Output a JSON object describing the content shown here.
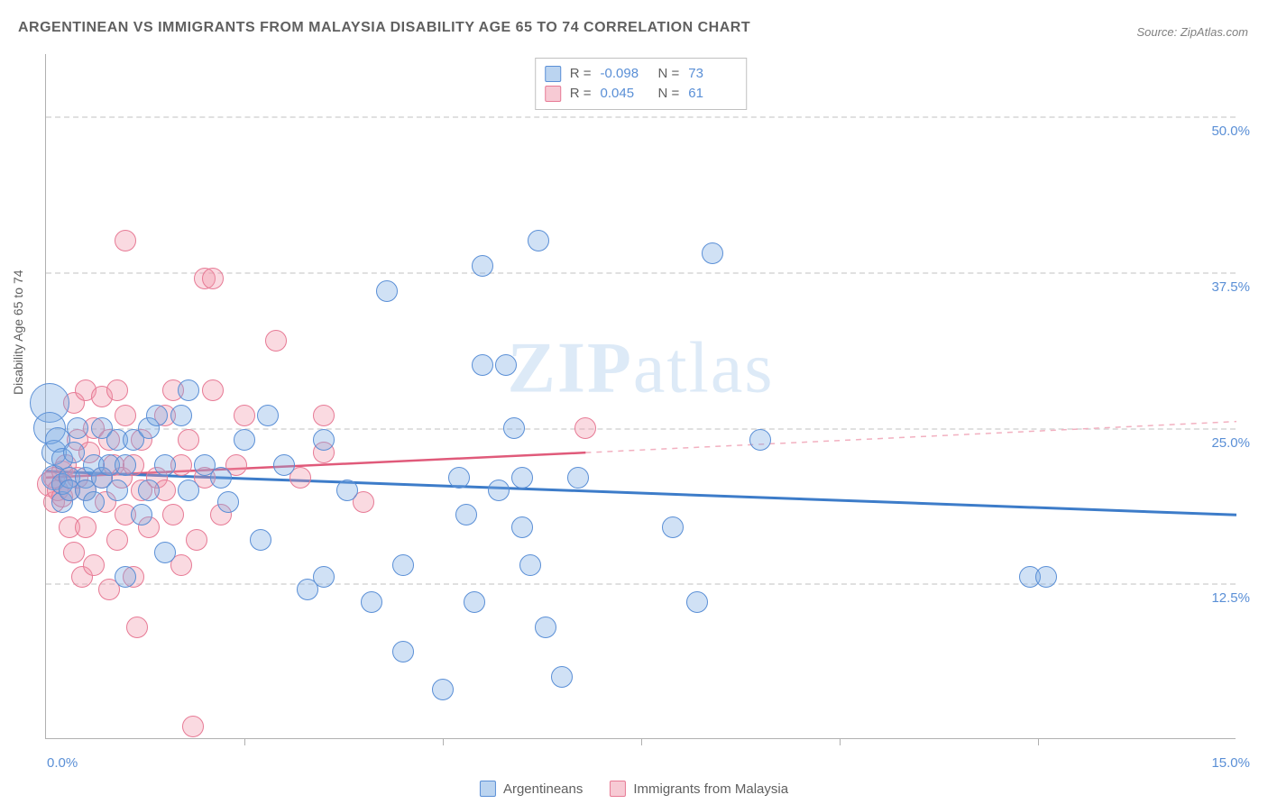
{
  "title": "ARGENTINEAN VS IMMIGRANTS FROM MALAYSIA DISABILITY AGE 65 TO 74 CORRELATION CHART",
  "source": "Source: ZipAtlas.com",
  "watermark_zip": "ZIP",
  "watermark_atlas": "atlas",
  "chart": {
    "type": "scatter",
    "ylabel": "Disability Age 65 to 74",
    "xlim": [
      0,
      15
    ],
    "ylim": [
      0,
      55
    ],
    "x_ticks": [
      0,
      2.5,
      5,
      7.5,
      10,
      12.5,
      15
    ],
    "x_tick_labels": [
      "0.0%",
      "",
      "",
      "",
      "",
      "",
      "15.0%"
    ],
    "y_ticks": [
      12.5,
      25,
      37.5,
      50
    ],
    "y_tick_labels": [
      "12.5%",
      "25.0%",
      "37.5%",
      "50.0%"
    ],
    "background_color": "#ffffff",
    "grid_color": "#e0e0e0",
    "series": [
      {
        "name": "Argentineans",
        "color_fill": "rgba(120,170,225,0.35)",
        "color_stroke": "#5a8fd6",
        "R": "-0.098",
        "N": "73",
        "marker_radius": 11,
        "trend": {
          "x1": 0,
          "y1": 21.5,
          "x2": 15,
          "y2": 18.0,
          "color": "#3d7cc9",
          "width": 3,
          "dash": "none"
        },
        "points": [
          [
            0.05,
            27,
            22
          ],
          [
            0.05,
            25,
            18
          ],
          [
            0.1,
            21,
            14
          ],
          [
            0.1,
            23,
            14
          ],
          [
            0.15,
            24,
            14
          ],
          [
            0.2,
            22.5,
            12
          ],
          [
            0.2,
            19,
            12
          ],
          [
            0.2,
            20.5,
            12
          ],
          [
            0.3,
            21,
            12
          ],
          [
            0.3,
            20,
            12
          ],
          [
            0.35,
            23,
            12
          ],
          [
            0.4,
            25,
            12
          ],
          [
            0.5,
            21,
            12
          ],
          [
            0.5,
            20,
            12
          ],
          [
            0.6,
            22,
            12
          ],
          [
            0.6,
            19,
            12
          ],
          [
            0.7,
            25,
            12
          ],
          [
            0.7,
            21,
            12
          ],
          [
            0.8,
            22,
            12
          ],
          [
            0.9,
            20,
            12
          ],
          [
            0.9,
            24,
            12
          ],
          [
            1.0,
            13,
            12
          ],
          [
            1.0,
            22,
            12
          ],
          [
            1.1,
            24,
            12
          ],
          [
            1.2,
            18,
            12
          ],
          [
            1.3,
            25,
            12
          ],
          [
            1.3,
            20,
            12
          ],
          [
            1.4,
            26,
            12
          ],
          [
            1.5,
            15,
            12
          ],
          [
            1.5,
            22,
            12
          ],
          [
            1.7,
            26,
            12
          ],
          [
            1.8,
            28,
            12
          ],
          [
            1.8,
            20,
            12
          ],
          [
            2.0,
            22,
            12
          ],
          [
            2.2,
            21,
            12
          ],
          [
            2.3,
            19,
            12
          ],
          [
            2.5,
            24,
            12
          ],
          [
            2.7,
            16,
            12
          ],
          [
            2.8,
            26,
            12
          ],
          [
            3.0,
            22,
            12
          ],
          [
            3.3,
            12,
            12
          ],
          [
            3.5,
            24,
            12
          ],
          [
            3.5,
            13,
            12
          ],
          [
            3.8,
            20,
            12
          ],
          [
            4.1,
            11,
            12
          ],
          [
            4.3,
            36,
            12
          ],
          [
            4.5,
            14,
            12
          ],
          [
            4.5,
            7,
            12
          ],
          [
            5.0,
            4,
            12
          ],
          [
            5.2,
            21,
            12
          ],
          [
            5.3,
            18,
            12
          ],
          [
            5.4,
            11,
            12
          ],
          [
            5.5,
            30,
            12
          ],
          [
            5.5,
            38,
            12
          ],
          [
            5.7,
            20,
            12
          ],
          [
            5.8,
            30,
            12
          ],
          [
            5.9,
            25,
            12
          ],
          [
            6.0,
            17,
            12
          ],
          [
            6.0,
            21,
            12
          ],
          [
            6.1,
            14,
            12
          ],
          [
            6.2,
            40,
            12
          ],
          [
            6.3,
            9,
            12
          ],
          [
            6.5,
            5,
            12
          ],
          [
            6.7,
            21,
            12
          ],
          [
            7.9,
            17,
            12
          ],
          [
            8.2,
            11,
            12
          ],
          [
            8.4,
            39,
            12
          ],
          [
            9.0,
            24,
            12
          ],
          [
            12.4,
            13,
            12
          ],
          [
            12.6,
            13,
            12
          ]
        ]
      },
      {
        "name": "Immigrants from Malaysia",
        "color_fill": "rgba(240,150,170,0.35)",
        "color_stroke": "#e77a95",
        "R": "0.045",
        "N": "61",
        "marker_radius": 11,
        "trend": {
          "x1": 0,
          "y1": 21.0,
          "x2": 6.8,
          "y2": 23.0,
          "color": "#e05a7a",
          "width": 2.5,
          "dash": "none"
        },
        "trend_ext": {
          "x1": 6.8,
          "y1": 23.0,
          "x2": 15,
          "y2": 25.5,
          "color": "#f2b0c0",
          "width": 1.5,
          "dash": "6,6"
        },
        "points": [
          [
            0.05,
            20.5,
            14
          ],
          [
            0.1,
            19,
            12
          ],
          [
            0.1,
            21,
            12
          ],
          [
            0.15,
            20,
            12
          ],
          [
            0.2,
            21.5,
            12
          ],
          [
            0.2,
            19.5,
            12
          ],
          [
            0.25,
            22,
            12
          ],
          [
            0.3,
            20,
            12
          ],
          [
            0.3,
            17,
            12
          ],
          [
            0.35,
            27,
            12
          ],
          [
            0.35,
            15,
            12
          ],
          [
            0.4,
            21,
            12
          ],
          [
            0.4,
            24,
            12
          ],
          [
            0.45,
            13,
            12
          ],
          [
            0.5,
            28,
            12
          ],
          [
            0.5,
            20,
            12
          ],
          [
            0.5,
            17,
            12
          ],
          [
            0.55,
            23,
            12
          ],
          [
            0.6,
            25,
            12
          ],
          [
            0.6,
            14,
            12
          ],
          [
            0.7,
            21,
            12
          ],
          [
            0.7,
            27.5,
            12
          ],
          [
            0.75,
            19,
            12
          ],
          [
            0.8,
            24,
            12
          ],
          [
            0.8,
            12,
            12
          ],
          [
            0.85,
            22,
            12
          ],
          [
            0.9,
            28,
            12
          ],
          [
            0.9,
            16,
            12
          ],
          [
            0.95,
            21,
            12
          ],
          [
            1.0,
            26,
            12
          ],
          [
            1.0,
            18,
            12
          ],
          [
            1.0,
            40,
            12
          ],
          [
            1.1,
            13,
            12
          ],
          [
            1.1,
            22,
            12
          ],
          [
            1.15,
            9,
            12
          ],
          [
            1.2,
            20,
            12
          ],
          [
            1.2,
            24,
            12
          ],
          [
            1.3,
            17,
            12
          ],
          [
            1.4,
            21,
            12
          ],
          [
            1.5,
            26,
            12
          ],
          [
            1.5,
            20,
            12
          ],
          [
            1.6,
            18,
            12
          ],
          [
            1.6,
            28,
            12
          ],
          [
            1.7,
            14,
            12
          ],
          [
            1.7,
            22,
            12
          ],
          [
            1.8,
            24,
            12
          ],
          [
            1.85,
            1,
            12
          ],
          [
            1.9,
            16,
            12
          ],
          [
            2.0,
            37,
            12
          ],
          [
            2.0,
            21,
            12
          ],
          [
            2.1,
            28,
            12
          ],
          [
            2.1,
            37,
            12
          ],
          [
            2.2,
            18,
            12
          ],
          [
            2.4,
            22,
            12
          ],
          [
            2.5,
            26,
            12
          ],
          [
            2.9,
            32,
            12
          ],
          [
            3.2,
            21,
            12
          ],
          [
            3.5,
            23,
            12
          ],
          [
            3.5,
            26,
            12
          ],
          [
            4.0,
            19,
            12
          ],
          [
            6.8,
            25,
            12
          ]
        ]
      }
    ]
  },
  "stat_legend": {
    "rows": [
      {
        "swatch": "blue",
        "r_label": "R =",
        "r_val": "-0.098",
        "n_label": "N =",
        "n_val": "73"
      },
      {
        "swatch": "pink",
        "r_label": "R =",
        "r_val": "0.045",
        "n_label": "N =",
        "n_val": "61"
      }
    ]
  },
  "bottom_legend": {
    "items": [
      {
        "swatch": "blue",
        "label": "Argentineans"
      },
      {
        "swatch": "pink",
        "label": "Immigrants from Malaysia"
      }
    ]
  }
}
